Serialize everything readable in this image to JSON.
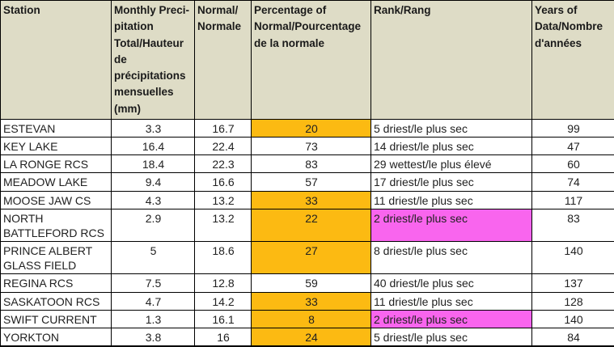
{
  "colors": {
    "header_bg": "#dedcc6",
    "percent_highlight_orange": "#fcba12",
    "rank_highlight_magenta": "#f965ee",
    "border": "#000000",
    "text": "#212121"
  },
  "chart_data": {
    "type": "table",
    "columns": [
      {
        "key": "station",
        "label": "Station"
      },
      {
        "key": "precip",
        "label": "Monthly Preci-\npitation\nTotal/Hauteur\nde\nprécipitations\nmensuelles\n(mm)"
      },
      {
        "key": "normal",
        "label": "Normal/\nNormale"
      },
      {
        "key": "pct",
        "label": "Percentage of\nNormal/Pourcentage\nde la normale"
      },
      {
        "key": "rank",
        "label": "Rank/Rang"
      },
      {
        "key": "years",
        "label": "Years of\nData/Nombre\nd'années"
      }
    ],
    "rows": [
      {
        "station": "ESTEVAN",
        "precip": "3.3",
        "normal": "16.7",
        "pct": "20",
        "pct_hl": true,
        "rank": "5 driest/le plus sec",
        "rank_hl": false,
        "years": "99"
      },
      {
        "station": "KEY LAKE",
        "precip": "16.4",
        "normal": "22.4",
        "pct": "73",
        "pct_hl": false,
        "rank": "14 driest/le plus sec",
        "rank_hl": false,
        "years": "47"
      },
      {
        "station": "LA RONGE RCS",
        "precip": "18.4",
        "normal": "22.3",
        "pct": "83",
        "pct_hl": false,
        "rank": "29 wettest/le plus élevé",
        "rank_hl": false,
        "years": "60"
      },
      {
        "station": "MEADOW LAKE",
        "precip": "9.4",
        "normal": "16.6",
        "pct": "57",
        "pct_hl": false,
        "rank": "17 driest/le plus sec",
        "rank_hl": false,
        "years": "74"
      },
      {
        "station": "MOOSE JAW CS",
        "precip": "4.3",
        "normal": "13.2",
        "pct": "33",
        "pct_hl": true,
        "rank": "11 driest/le plus sec",
        "rank_hl": false,
        "years": "117"
      },
      {
        "station": "NORTH BATTLEFORD RCS",
        "precip": "2.9",
        "normal": "13.2",
        "pct": "22",
        "pct_hl": true,
        "rank": "2 driest/le plus sec",
        "rank_hl": true,
        "years": "83"
      },
      {
        "station": "PRINCE ALBERT GLASS FIELD",
        "precip": "5",
        "normal": "18.6",
        "pct": "27",
        "pct_hl": true,
        "rank": "8 driest/le plus sec",
        "rank_hl": false,
        "years": "140"
      },
      {
        "station": "REGINA RCS",
        "precip": "7.5",
        "normal": "12.8",
        "pct": "59",
        "pct_hl": false,
        "rank": "40 driest/le plus sec",
        "rank_hl": false,
        "years": "137"
      },
      {
        "station": "SASKATOON RCS",
        "precip": "4.7",
        "normal": "14.2",
        "pct": "33",
        "pct_hl": true,
        "rank": "11 driest/le plus sec",
        "rank_hl": false,
        "years": "128"
      },
      {
        "station": "SWIFT CURRENT",
        "precip": "1.3",
        "normal": "16.1",
        "pct": "8",
        "pct_hl": true,
        "rank": "2 driest/le plus sec",
        "rank_hl": true,
        "years": "140"
      },
      {
        "station": "YORKTON",
        "precip": "3.8",
        "normal": "16",
        "pct": "24",
        "pct_hl": true,
        "rank": "5 driest/le plus sec",
        "rank_hl": false,
        "years": "84"
      }
    ]
  }
}
